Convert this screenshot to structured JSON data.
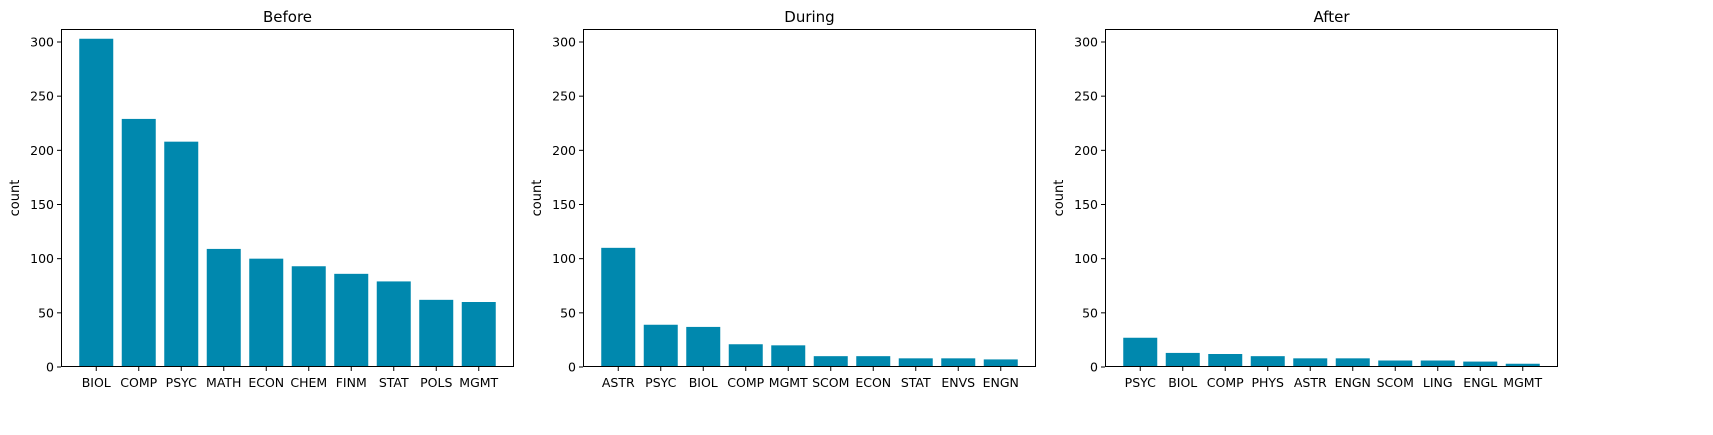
{
  "bar_color": "#0088ae",
  "chart_data": [
    {
      "type": "bar",
      "title": "Before",
      "xlabel": "",
      "ylabel": "count",
      "ylim": [
        0,
        312
      ],
      "yticks": [
        0,
        50,
        100,
        150,
        200,
        250,
        300
      ],
      "categories": [
        "BIOL",
        "COMP",
        "PSYC",
        "MATH",
        "ECON",
        "CHEM",
        "FINM",
        "STAT",
        "POLS",
        "MGMT"
      ],
      "values": [
        303,
        229,
        208,
        109,
        100,
        93,
        86,
        79,
        62,
        60
      ],
      "grid": false
    },
    {
      "type": "bar",
      "title": "During",
      "xlabel": "",
      "ylabel": "count",
      "ylim": [
        0,
        312
      ],
      "yticks": [
        0,
        50,
        100,
        150,
        200,
        250,
        300
      ],
      "categories": [
        "ASTR",
        "PSYC",
        "BIOL",
        "COMP",
        "MGMT",
        "SCOM",
        "ECON",
        "STAT",
        "ENVS",
        "ENGN"
      ],
      "values": [
        110,
        39,
        37,
        21,
        20,
        10,
        10,
        8,
        8,
        7
      ],
      "grid": false
    },
    {
      "type": "bar",
      "title": "After",
      "xlabel": "",
      "ylabel": "count",
      "ylim": [
        0,
        312
      ],
      "yticks": [
        0,
        50,
        100,
        150,
        200,
        250,
        300
      ],
      "categories": [
        "PSYC",
        "BIOL",
        "COMP",
        "PHYS",
        "ASTR",
        "ENGN",
        "SCOM",
        "LING",
        "ENGL",
        "MGMT"
      ],
      "values": [
        27,
        13,
        12,
        10,
        8,
        8,
        6,
        6,
        5,
        3
      ],
      "grid": false
    }
  ]
}
